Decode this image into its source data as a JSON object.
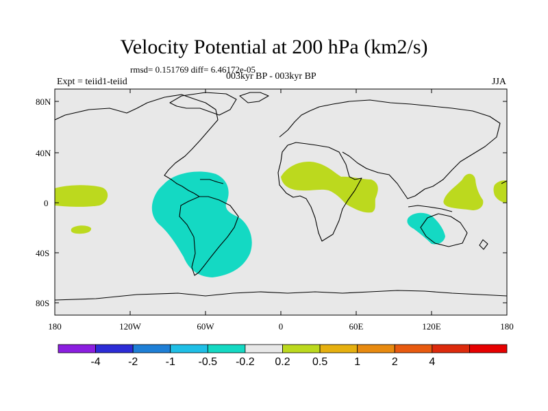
{
  "title": "Velocity Potential at 200 hPa (km2/s)",
  "stats": "rmsd= 0.151769 diff= 6.46172e-05",
  "period": "003kyr BP - 003kyr BP",
  "experiment": "Expt = teiid1-teiid",
  "season": "JJA",
  "lat_ticks": [
    "80N",
    "40N",
    "0",
    "40S",
    "80S"
  ],
  "lon_ticks": [
    "180",
    "120W",
    "60W",
    "0",
    "60E",
    "120E",
    "180"
  ],
  "colorbar": {
    "colors": [
      "#8b1ee0",
      "#2c2cd6",
      "#1e7fd6",
      "#1fbfe6",
      "#14d9c3",
      "#e8e8e8",
      "#bcd91e",
      "#e6b00f",
      "#e88a0f",
      "#e85a0f",
      "#dd2a0c",
      "#e60000"
    ],
    "labels": [
      "-4",
      "-2",
      "-1",
      "-0.5",
      "-0.2",
      "0.2",
      "0.5",
      "1",
      "2",
      "4"
    ]
  },
  "regions": [
    {
      "name": "south-america-negative",
      "category": "-0.5 to -0.2"
    },
    {
      "name": "indonesia-australia-negative",
      "category": "-0.5 to -0.2"
    },
    {
      "name": "africa-arabia-positive",
      "category": "0.2 to 0.5"
    },
    {
      "name": "western-pacific-positive",
      "category": "0.2 to 0.5"
    },
    {
      "name": "central-pacific-positive",
      "category": "0.2 to 0.5"
    }
  ]
}
